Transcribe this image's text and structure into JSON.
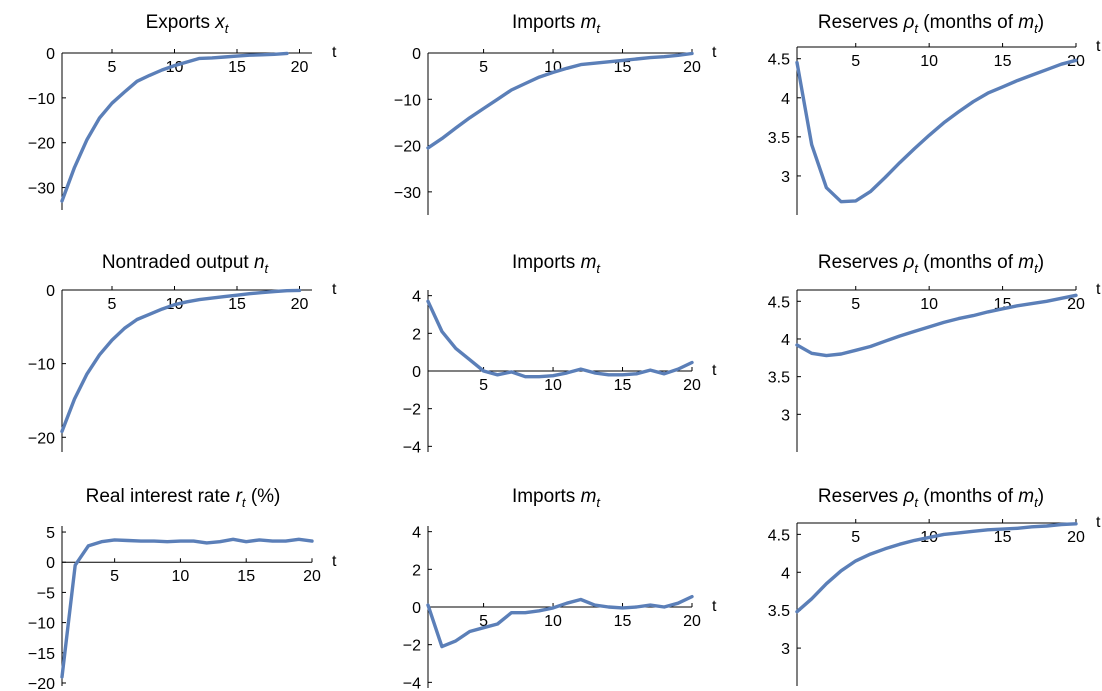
{
  "chart_data": [
    {
      "type": "line",
      "title": "Exports x_t",
      "title_main": "Exports ",
      "title_var": "x",
      "title_sub": "t",
      "title_after": "",
      "xlabel": "t",
      "ylabel": "",
      "xlim": [
        1,
        21
      ],
      "ylim": [
        -35,
        0
      ],
      "x_ticks": [
        5,
        10,
        15,
        20
      ],
      "y_ticks": [
        0,
        -10,
        -20,
        -30
      ],
      "x_tick_labels": [
        "5",
        "10",
        "15",
        "20"
      ],
      "y_tick_labels": [
        "0",
        "−10",
        "−20",
        "−30"
      ],
      "grid": false,
      "color": "#5b7fb8",
      "x": [
        1,
        2,
        3,
        4,
        5,
        6,
        7,
        8,
        9,
        10,
        11,
        12,
        13,
        14,
        15,
        16,
        17,
        18,
        19
      ],
      "y": [
        -33,
        -25.5,
        -19.3,
        -14.5,
        -11.2,
        -8.7,
        -6.3,
        -5.0,
        -3.8,
        -2.8,
        -2.0,
        -1.2,
        -1.1,
        -0.9,
        -0.7,
        -0.5,
        -0.4,
        -0.3,
        -0.1
      ]
    },
    {
      "type": "line",
      "title": "Imports m_t",
      "title_main": "Imports ",
      "title_var": "m",
      "title_sub": "t",
      "title_after": "",
      "xlabel": "t",
      "ylabel": "",
      "xlim": [
        1,
        20
      ],
      "ylim": [
        -35,
        0
      ],
      "x_ticks": [
        5,
        10,
        15,
        20
      ],
      "y_ticks": [
        0,
        -10,
        -20,
        -30
      ],
      "x_tick_labels": [
        "5",
        "10",
        "15",
        "20"
      ],
      "y_tick_labels": [
        "0",
        "−10",
        "−20",
        "−30"
      ],
      "grid": false,
      "color": "#5b7fb8",
      "x": [
        1,
        2,
        3,
        4,
        5,
        6,
        7,
        8,
        9,
        10,
        11,
        12,
        13,
        14,
        15,
        16,
        17,
        18,
        19,
        20
      ],
      "y": [
        -20.5,
        -18.5,
        -16.2,
        -14.0,
        -12.0,
        -10.0,
        -8.0,
        -6.6,
        -5.2,
        -4.2,
        -3.3,
        -2.5,
        -2.2,
        -1.9,
        -1.6,
        -1.3,
        -1.0,
        -0.8,
        -0.5,
        -0.1
      ]
    },
    {
      "type": "line",
      "title": "Reserves ρ_t (months of m_t)",
      "title_main": "Reserves ",
      "title_var": "ρ",
      "title_sub": "t",
      "title_after": " (months of m_t)",
      "xlabel": "t",
      "ylabel": "",
      "xlim": [
        1,
        20
      ],
      "ylim": [
        2.5,
        4.65
      ],
      "x_ticks": [
        5,
        10,
        15,
        20
      ],
      "y_ticks": [
        3,
        3.5,
        4,
        4.5
      ],
      "x_tick_labels": [
        "5",
        "10",
        "15",
        "20"
      ],
      "y_tick_labels": [
        "3",
        "3.5",
        "4",
        "4.5"
      ],
      "grid": false,
      "color": "#5b7fb8",
      "x": [
        1,
        2,
        3,
        4,
        5,
        6,
        7,
        8,
        9,
        10,
        11,
        12,
        13,
        14,
        15,
        16,
        17,
        18,
        19,
        20
      ],
      "y": [
        4.45,
        3.4,
        2.85,
        2.67,
        2.68,
        2.8,
        2.98,
        3.17,
        3.35,
        3.52,
        3.68,
        3.82,
        3.95,
        4.06,
        4.14,
        4.22,
        4.29,
        4.36,
        4.43,
        4.48
      ]
    },
    {
      "type": "line",
      "title": "Nontraded output n_t",
      "title_main": "Nontraded output ",
      "title_var": "n",
      "title_sub": "t",
      "title_after": "",
      "xlabel": "t",
      "ylabel": "",
      "xlim": [
        1,
        21
      ],
      "ylim": [
        -22,
        0
      ],
      "x_ticks": [
        5,
        10,
        15,
        20
      ],
      "y_ticks": [
        0,
        -10,
        -20
      ],
      "x_tick_labels": [
        "5",
        "10",
        "15",
        "20"
      ],
      "y_tick_labels": [
        "0",
        "−10",
        "−20"
      ],
      "grid": false,
      "color": "#5b7fb8",
      "x": [
        1,
        2,
        3,
        4,
        5,
        6,
        7,
        8,
        9,
        10,
        11,
        12,
        13,
        14,
        15,
        16,
        17,
        18,
        19,
        20
      ],
      "y": [
        -19.2,
        -14.8,
        -11.4,
        -8.8,
        -6.8,
        -5.2,
        -4.0,
        -3.3,
        -2.6,
        -2.0,
        -1.6,
        -1.3,
        -1.1,
        -0.9,
        -0.7,
        -0.5,
        -0.35,
        -0.2,
        -0.1,
        -0.05
      ]
    },
    {
      "type": "line",
      "title": "Imports m_t",
      "title_main": "Imports ",
      "title_var": "m",
      "title_sub": "t",
      "title_after": "",
      "xlabel": "t",
      "ylabel": "",
      "xlim": [
        1,
        20
      ],
      "ylim": [
        -4.3,
        4.3
      ],
      "x_ticks": [
        5,
        10,
        15,
        20
      ],
      "y_ticks": [
        4,
        2,
        0,
        -2,
        -4
      ],
      "x_tick_labels": [
        "5",
        "10",
        "15",
        "20"
      ],
      "y_tick_labels": [
        "4",
        "2",
        "0",
        "−2",
        "−4"
      ],
      "grid": false,
      "color": "#5b7fb8",
      "x": [
        1,
        2,
        3,
        4,
        5,
        6,
        7,
        8,
        9,
        10,
        11,
        12,
        13,
        14,
        15,
        16,
        17,
        18,
        19,
        20
      ],
      "y": [
        3.7,
        2.1,
        1.2,
        0.6,
        0.0,
        -0.2,
        -0.05,
        -0.3,
        -0.3,
        -0.25,
        -0.1,
        0.1,
        -0.1,
        -0.2,
        -0.2,
        -0.15,
        0.05,
        -0.15,
        0.1,
        0.45
      ]
    },
    {
      "type": "line",
      "title": "Reserves ρ_t (months of m_t)",
      "title_main": "Reserves ",
      "title_var": "ρ",
      "title_sub": "t",
      "title_after": " (months of m_t)",
      "xlabel": "t",
      "ylabel": "",
      "xlim": [
        1,
        20
      ],
      "ylim": [
        2.5,
        4.65
      ],
      "x_ticks": [
        5,
        10,
        15,
        20
      ],
      "y_ticks": [
        3,
        3.5,
        4,
        4.5
      ],
      "x_tick_labels": [
        "5",
        "10",
        "15",
        "20"
      ],
      "y_tick_labels": [
        "3",
        "3.5",
        "4",
        "4.5"
      ],
      "grid": false,
      "color": "#5b7fb8",
      "x": [
        1,
        2,
        3,
        4,
        5,
        6,
        7,
        8,
        9,
        10,
        11,
        12,
        13,
        14,
        15,
        16,
        17,
        18,
        19,
        20
      ],
      "y": [
        3.92,
        3.81,
        3.78,
        3.8,
        3.85,
        3.9,
        3.97,
        4.04,
        4.1,
        4.16,
        4.22,
        4.27,
        4.31,
        4.36,
        4.4,
        4.44,
        4.47,
        4.5,
        4.54,
        4.58
      ]
    },
    {
      "type": "line",
      "title": "Real interest rate r_t (%)",
      "title_main": "Real interest rate ",
      "title_var": "r",
      "title_sub": "t",
      "title_after": " (%)",
      "xlabel": "t",
      "ylabel": "",
      "xlim": [
        1,
        20
      ],
      "ylim": [
        -20.5,
        6
      ],
      "x_ticks": [
        5,
        10,
        15,
        20
      ],
      "y_ticks": [
        5,
        0,
        -5,
        -10,
        -15,
        -20
      ],
      "x_tick_labels": [
        "5",
        "10",
        "15",
        "20"
      ],
      "y_tick_labels": [
        "5",
        "0",
        "−5",
        "−10",
        "−15",
        "−20"
      ],
      "grid": false,
      "color": "#5b7fb8",
      "x": [
        1,
        2,
        3,
        4,
        5,
        6,
        7,
        8,
        9,
        10,
        11,
        12,
        13,
        14,
        15,
        16,
        17,
        18,
        19,
        20
      ],
      "y": [
        -19,
        -0.5,
        2.7,
        3.4,
        3.7,
        3.6,
        3.5,
        3.5,
        3.4,
        3.5,
        3.5,
        3.2,
        3.4,
        3.8,
        3.4,
        3.7,
        3.5,
        3.5,
        3.8,
        3.5
      ]
    },
    {
      "type": "line",
      "title": "Imports m_t",
      "title_main": "Imports ",
      "title_var": "m",
      "title_sub": "t",
      "title_after": "",
      "xlabel": "t",
      "ylabel": "",
      "xlim": [
        1,
        20
      ],
      "ylim": [
        -4.3,
        4.3
      ],
      "x_ticks": [
        5,
        10,
        15,
        20
      ],
      "y_ticks": [
        4,
        2,
        0,
        -2,
        -4
      ],
      "x_tick_labels": [
        "5",
        "10",
        "15",
        "20"
      ],
      "y_tick_labels": [
        "4",
        "2",
        "0",
        "−2",
        "−4"
      ],
      "grid": false,
      "color": "#5b7fb8",
      "x": [
        1,
        2,
        3,
        4,
        5,
        6,
        7,
        8,
        9,
        10,
        11,
        12,
        13,
        14,
        15,
        16,
        17,
        18,
        19,
        20
      ],
      "y": [
        0.1,
        -2.1,
        -1.8,
        -1.3,
        -1.1,
        -0.9,
        -0.3,
        -0.3,
        -0.2,
        -0.05,
        0.2,
        0.4,
        0.1,
        0.0,
        -0.05,
        0.0,
        0.1,
        0.0,
        0.2,
        0.55
      ]
    },
    {
      "type": "line",
      "title": "Reserves ρ_t (months of m_t)",
      "title_main": "Reserves ",
      "title_var": "ρ",
      "title_sub": "t",
      "title_after": " (months of m_t)",
      "xlabel": "t",
      "ylabel": "",
      "xlim": [
        1,
        20
      ],
      "ylim": [
        2.5,
        4.65
      ],
      "x_ticks": [
        5,
        10,
        15,
        20
      ],
      "y_ticks": [
        3,
        3.5,
        4,
        4.5
      ],
      "x_tick_labels": [
        "5",
        "10",
        "15",
        "20"
      ],
      "y_tick_labels": [
        "3",
        "3.5",
        "4",
        "4.5"
      ],
      "grid": false,
      "color": "#5b7fb8",
      "x": [
        1,
        2,
        3,
        4,
        5,
        6,
        7,
        8,
        9,
        10,
        11,
        12,
        13,
        14,
        15,
        16,
        17,
        18,
        19,
        20
      ],
      "y": [
        3.48,
        3.65,
        3.85,
        4.02,
        4.15,
        4.24,
        4.31,
        4.37,
        4.42,
        4.46,
        4.5,
        4.52,
        4.54,
        4.56,
        4.57,
        4.58,
        4.6,
        4.61,
        4.63,
        4.64
      ]
    }
  ]
}
